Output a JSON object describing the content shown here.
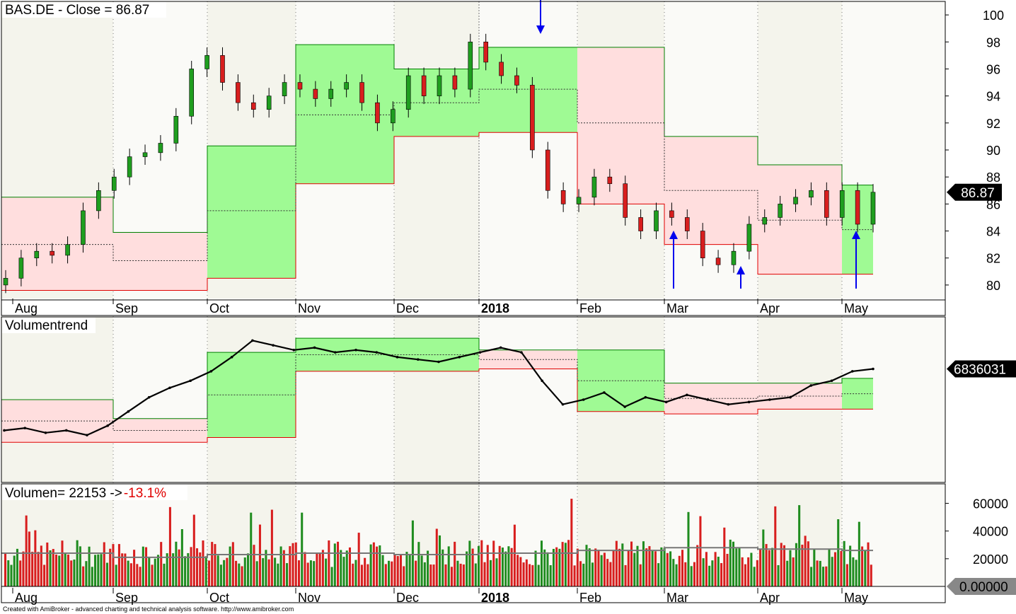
{
  "footer": "Created with AmiBroker - advanced charting and technical analysis software. http://www.amibroker.com",
  "x_axis": {
    "labels": [
      "Aug",
      "Sep",
      "Oct",
      "Nov",
      "Dec",
      "2018",
      "Feb",
      "Mar",
      "Apr",
      "May"
    ],
    "bold_label": "2018"
  },
  "chart_data": [
    {
      "type": "candlestick",
      "title": "BAS.DE - Close = 86.87",
      "last_value_label": "86.87",
      "ylim": [
        79,
        101
      ],
      "yticks": [
        80,
        82,
        84,
        86,
        88,
        90,
        92,
        94,
        96,
        98,
        100
      ],
      "channel_band": {
        "x": [
          "Aug",
          "Sep",
          "Oct",
          "Nov",
          "Dec",
          "2018",
          "Feb",
          "Mar",
          "Apr",
          "May"
        ],
        "upper": [
          86.5,
          83.9,
          90.3,
          97.8,
          96.0,
          97.6,
          97.6,
          91.0,
          88.9,
          87.4
        ],
        "lower": [
          79.6,
          79.6,
          80.5,
          87.5,
          91.0,
          91.3,
          86.0,
          83.0,
          80.8,
          80.8
        ],
        "middle": [
          83.0,
          81.8,
          85.5,
          92.6,
          93.5,
          94.5,
          92.0,
          87.0,
          84.8,
          84.1
        ]
      },
      "closes": [
        80.5,
        82.0,
        82.5,
        82.2,
        83.0,
        85.5,
        87.0,
        88.0,
        89.5,
        89.8,
        90.5,
        92.5,
        96.0,
        97.0,
        95.0,
        93.5,
        93.0,
        94.0,
        95.0,
        94.5,
        93.8,
        94.5,
        95.0,
        93.5,
        92.0,
        93.0,
        95.5,
        94.0,
        95.5,
        94.5,
        98.0,
        96.5,
        95.5,
        94.8,
        90.0,
        87.0,
        86.0,
        86.5,
        88.0,
        87.5,
        85.0,
        84.0,
        85.5,
        85.0,
        84.0,
        82.0,
        81.5,
        82.5,
        84.5,
        85.0,
        86.0,
        86.5,
        87.0,
        85.0,
        87.0,
        84.5,
        86.87
      ],
      "signal_arrows": [
        {
          "direction": "down",
          "label": "sell",
          "month": "2018"
        },
        {
          "direction": "up",
          "label": "buy",
          "month": "Mar"
        },
        {
          "direction": "up",
          "label": "buy",
          "month": "Mar"
        },
        {
          "direction": "up",
          "label": "buy",
          "month": "May"
        }
      ]
    },
    {
      "type": "line",
      "title": "Volumentrend",
      "last_value_label": "6836031",
      "series": [
        {
          "values": [
            22,
            23,
            21,
            22,
            20,
            24,
            30,
            36,
            40,
            43,
            47,
            53,
            60,
            58,
            56,
            57,
            55,
            56,
            55,
            53,
            52,
            51,
            53,
            55,
            57,
            55,
            43,
            33,
            35,
            38,
            32,
            36,
            34,
            37,
            35,
            33,
            34,
            35,
            36,
            41,
            43,
            47,
            48
          ]
        }
      ],
      "channel_band": {
        "upper": [
          35,
          27,
          55,
          61,
          61,
          56,
          56,
          42,
          42,
          44
        ],
        "lower": [
          17,
          17,
          19,
          47,
          47,
          48,
          30,
          29,
          31,
          31
        ]
      }
    },
    {
      "type": "bar",
      "title": "Volumen= 22153 -> ",
      "change_label": "-13.1%",
      "last_value_label": "0.00000",
      "ylim": [
        0,
        70000
      ],
      "yticks": [
        20000,
        40000,
        60000
      ],
      "yticklabels": [
        "20000",
        "40000",
        "60000"
      ],
      "average_line": [
        24000,
        21000,
        23000,
        24000,
        23000,
        24000,
        26000,
        28000,
        27000,
        26000
      ]
    }
  ]
}
